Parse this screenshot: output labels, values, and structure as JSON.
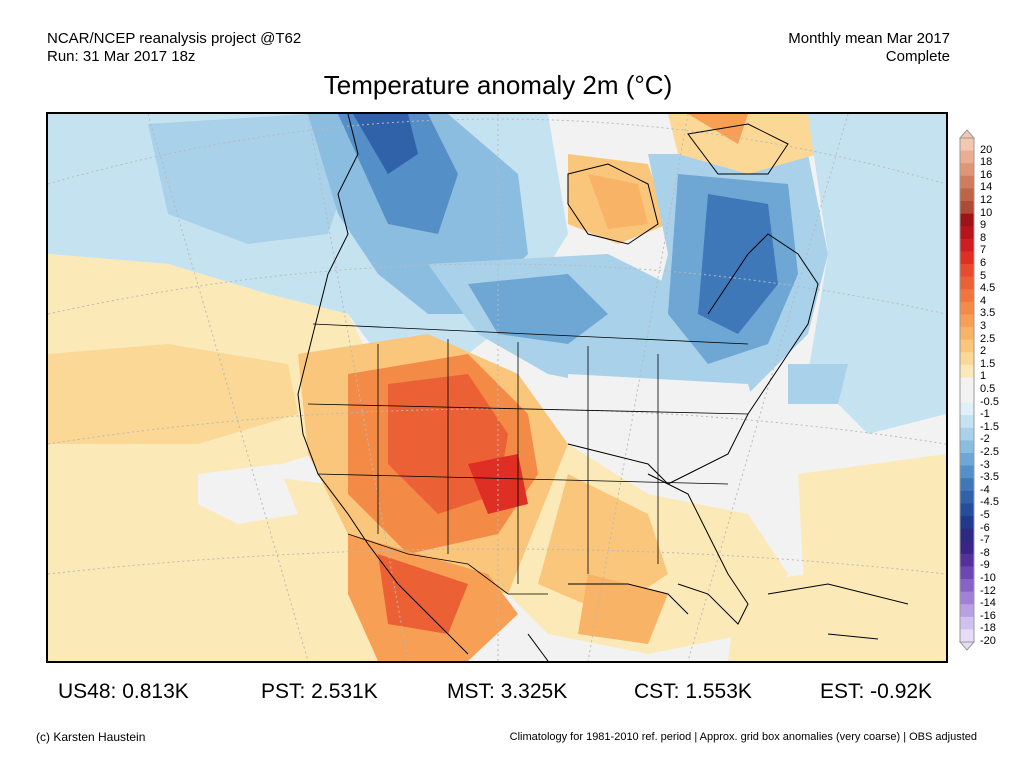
{
  "header": {
    "left_line1": "NCAR/NCEP reanalysis project @T62",
    "left_line2": "Run: 31 Mar 2017 18z",
    "right_line1": "Monthly mean Mar 2017",
    "right_line2": "Complete"
  },
  "title": "Temperature anomaly 2m (°C)",
  "colorbar": {
    "levels": [
      {
        "label": "20",
        "color": "#f4c7b1"
      },
      {
        "label": "18",
        "color": "#e9ad92"
      },
      {
        "label": "16",
        "color": "#de9676"
      },
      {
        "label": "14",
        "color": "#d07c5c"
      },
      {
        "label": "12",
        "color": "#c06448"
      },
      {
        "label": "10",
        "color": "#ad4b37"
      },
      {
        "label": "9",
        "color": "#9e1218"
      },
      {
        "label": "8",
        "color": "#b8141b"
      },
      {
        "label": "7",
        "color": "#cf1e22"
      },
      {
        "label": "6",
        "color": "#df2f25"
      },
      {
        "label": "5",
        "color": "#e84a2d"
      },
      {
        "label": "4.5",
        "color": "#ec6035"
      },
      {
        "label": "4",
        "color": "#f0763e"
      },
      {
        "label": "3.5",
        "color": "#f38b47"
      },
      {
        "label": "3",
        "color": "#f69f55"
      },
      {
        "label": "2.5",
        "color": "#f8b366"
      },
      {
        "label": "2",
        "color": "#fac67b"
      },
      {
        "label": "1.5",
        "color": "#fbd896"
      },
      {
        "label": "1",
        "color": "#fce9b8"
      },
      {
        "label": "0.5",
        "color": "#f2f2f2"
      },
      {
        "label": "-0.5",
        "color": "#f2f2f2"
      },
      {
        "label": "-1",
        "color": "#dff0f8"
      },
      {
        "label": "-1.5",
        "color": "#c5e2f1"
      },
      {
        "label": "-2",
        "color": "#a9d1ea"
      },
      {
        "label": "-2.5",
        "color": "#8bbde0"
      },
      {
        "label": "-3",
        "color": "#6ea6d4"
      },
      {
        "label": "-3.5",
        "color": "#548fc7"
      },
      {
        "label": "-4",
        "color": "#3f78b9"
      },
      {
        "label": "-4.5",
        "color": "#3062aa"
      },
      {
        "label": "-5",
        "color": "#264d9b"
      },
      {
        "label": "-6",
        "color": "#203b8d"
      },
      {
        "label": "-7",
        "color": "#2c2a82"
      },
      {
        "label": "-8",
        "color": "#3b2485"
      },
      {
        "label": "-9",
        "color": "#55329b"
      },
      {
        "label": "-10",
        "color": "#6d47b3"
      },
      {
        "label": "-12",
        "color": "#8663c6"
      },
      {
        "label": "-14",
        "color": "#9f82d6"
      },
      {
        "label": "-16",
        "color": "#b8a1e3"
      },
      {
        "label": "-18",
        "color": "#d0c1ef"
      },
      {
        "label": "-20",
        "color": "#e6dcf8"
      }
    ]
  },
  "stats": [
    {
      "text": "US48: 0.813K"
    },
    {
      "text": "PST: 2.531K"
    },
    {
      "text": "MST: 3.325K"
    },
    {
      "text": "CST: 1.553K"
    },
    {
      "text": "EST: -0.92K"
    }
  ],
  "footer": {
    "credit": "(c) Karsten Haustein",
    "note": "Climatology for 1981-2010 ref. period | Approx. grid box anomalies (very coarse) | OBS adjusted"
  }
}
